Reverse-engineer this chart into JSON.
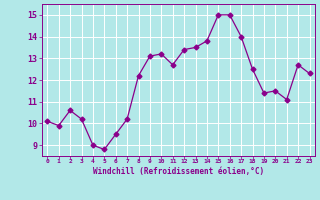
{
  "x": [
    0,
    1,
    2,
    3,
    4,
    5,
    6,
    7,
    8,
    9,
    10,
    11,
    12,
    13,
    14,
    15,
    16,
    17,
    18,
    19,
    20,
    21,
    22,
    23
  ],
  "y": [
    10.1,
    9.9,
    10.6,
    10.2,
    9.0,
    8.8,
    9.5,
    10.2,
    12.2,
    13.1,
    13.2,
    12.7,
    13.4,
    13.5,
    13.8,
    15.0,
    15.0,
    14.0,
    12.5,
    11.4,
    11.5,
    11.1,
    12.7,
    12.3
  ],
  "line_color": "#8B008B",
  "marker": "D",
  "marker_size": 2.5,
  "bg_color": "#b2e8e8",
  "grid_color": "#ffffff",
  "xlabel": "Windchill (Refroidissement éolien,°C)",
  "xlabel_color": "#8B008B",
  "tick_color": "#8B008B",
  "ylim": [
    8.5,
    15.5
  ],
  "xlim": [
    -0.5,
    23.5
  ],
  "yticks": [
    9,
    10,
    11,
    12,
    13,
    14,
    15
  ],
  "xticks": [
    0,
    1,
    2,
    3,
    4,
    5,
    6,
    7,
    8,
    9,
    10,
    11,
    12,
    13,
    14,
    15,
    16,
    17,
    18,
    19,
    20,
    21,
    22,
    23
  ],
  "xtick_labels": [
    "0",
    "1",
    "2",
    "3",
    "4",
    "5",
    "6",
    "7",
    "8",
    "9",
    "10",
    "11",
    "12",
    "13",
    "14",
    "15",
    "16",
    "17",
    "18",
    "19",
    "20",
    "21",
    "22",
    "23"
  ]
}
